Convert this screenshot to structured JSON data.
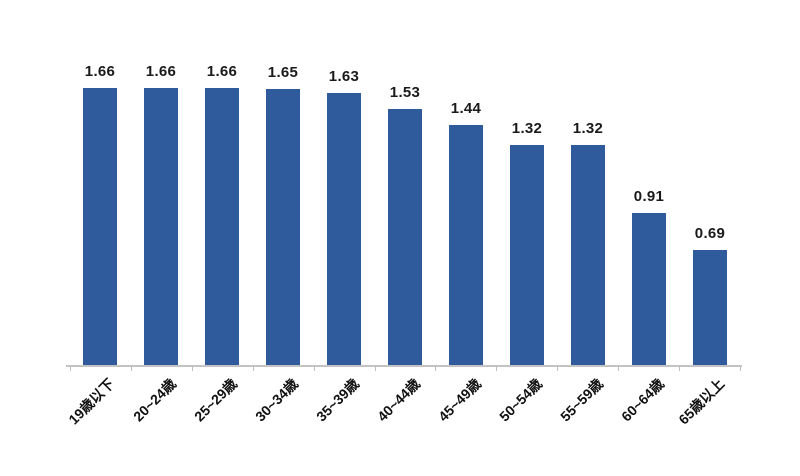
{
  "chart_data": {
    "type": "bar",
    "title": "",
    "xlabel": "",
    "ylabel": "",
    "categories": [
      "19歳以下",
      "20~24歳",
      "25~29歳",
      "30~34歳",
      "35~39歳",
      "40~44歳",
      "45~49歳",
      "50~54歳",
      "55~59歳",
      "60~64歳",
      "65歳以上"
    ],
    "values": [
      1.66,
      1.66,
      1.66,
      1.65,
      1.63,
      1.53,
      1.44,
      1.32,
      1.32,
      0.91,
      0.69
    ],
    "value_labels": [
      "1.66",
      "1.66",
      "1.66",
      "1.65",
      "1.63",
      "1.53",
      "1.44",
      "1.32",
      "1.32",
      "0.91",
      "0.69"
    ],
    "ylim": [
      0,
      1.8
    ],
    "grid": false,
    "legend": false,
    "data_labels_position": "above-bar",
    "x_tick_label_rotation_deg": 45,
    "colors": {
      "bar": "#2f5b9c",
      "axis_line": "#c3c3c3",
      "tick": "#bfbfbf",
      "value_label": "#1a1a1a",
      "x_label": "#111111",
      "background": "#ffffff"
    }
  }
}
